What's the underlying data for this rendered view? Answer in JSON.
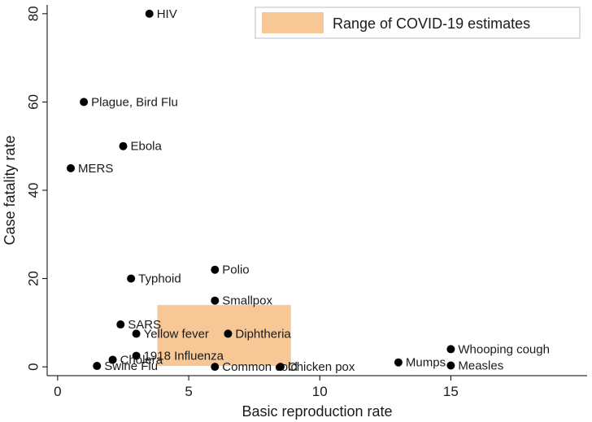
{
  "chart_data": {
    "type": "scatter",
    "title": "",
    "xlabel": "Basic reproduction rate",
    "ylabel": "Case fatality rate",
    "xlim": [
      -0.4,
      20.2
    ],
    "ylim": [
      -2,
      82
    ],
    "xticks": [
      0,
      5,
      10,
      15
    ],
    "yticks": [
      0,
      20,
      40,
      60,
      80
    ],
    "grid": false,
    "legend": {
      "position": "top-right",
      "label": "Range of COVID-19 estimates",
      "color": "#f7c796"
    },
    "covid_range": {
      "x": [
        3.8,
        8.9
      ],
      "y": [
        0.2,
        14
      ]
    },
    "point_color": "#000000",
    "points": [
      {
        "label": "HIV",
        "x": 3.5,
        "y": 80
      },
      {
        "label": "Plague, Bird Flu",
        "x": 1.0,
        "y": 60
      },
      {
        "label": "Ebola",
        "x": 2.5,
        "y": 50
      },
      {
        "label": "MERS",
        "x": 0.5,
        "y": 45
      },
      {
        "label": "Polio",
        "x": 6.0,
        "y": 22
      },
      {
        "label": "Typhoid",
        "x": 2.8,
        "y": 20
      },
      {
        "label": "Smallpox",
        "x": 6.0,
        "y": 15
      },
      {
        "label": "SARS",
        "x": 2.4,
        "y": 9.6
      },
      {
        "label": "Yellow fever",
        "x": 3.0,
        "y": 7.5
      },
      {
        "label": "Diphtheria",
        "x": 6.5,
        "y": 7.5
      },
      {
        "label": "1918 Influenza",
        "x": 3.0,
        "y": 2.5
      },
      {
        "label": "Cholera",
        "x": 2.1,
        "y": 1.6
      },
      {
        "label": "Swine Flu",
        "x": 1.5,
        "y": 0.2
      },
      {
        "label": "Common cold",
        "x": 6.0,
        "y": 0.0
      },
      {
        "label": "Chicken pox",
        "x": 8.5,
        "y": 0.0
      },
      {
        "label": "Mumps",
        "x": 13.0,
        "y": 1.0
      },
      {
        "label": "Whooping cough",
        "x": 15.0,
        "y": 4.0
      },
      {
        "label": "Measles",
        "x": 15.0,
        "y": 0.3
      }
    ]
  }
}
